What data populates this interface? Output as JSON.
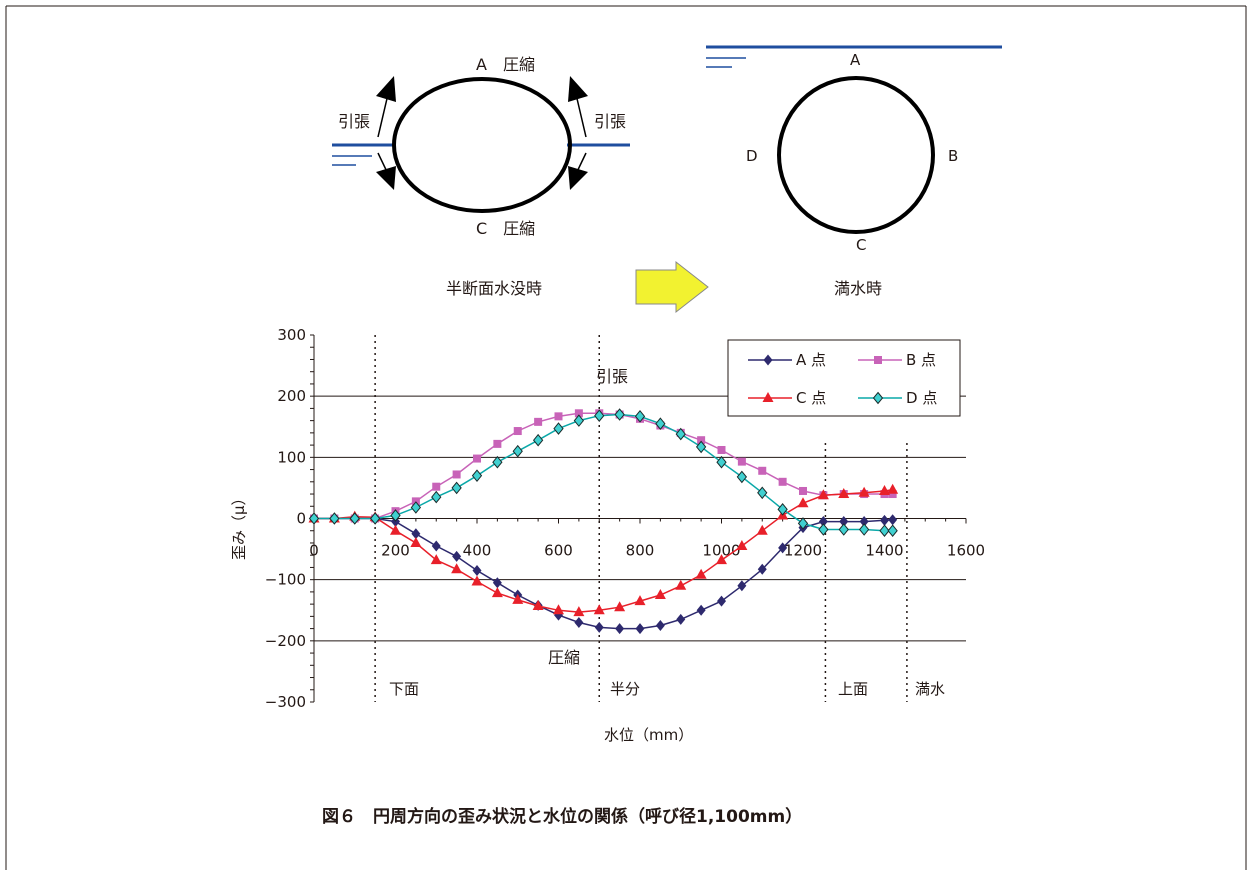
{
  "diagram_left": {
    "label_top": "A　圧縮",
    "label_bottom": "C　圧縮",
    "label_left": "引張",
    "label_right": "引張",
    "caption": "半断面水没時"
  },
  "diagram_right": {
    "label_a": "A",
    "label_b": "B",
    "label_c": "C",
    "label_d": "D",
    "caption": "満水時"
  },
  "colors": {
    "water": "#1f4e9f",
    "arrow_fill": "#f2f230",
    "arrow_stroke": "#888888",
    "series_a": "#2e2a6e",
    "series_b": "#c863b8",
    "series_c": "#e8202a",
    "series_d": "#0aa8a8",
    "series_d_fill": "#40d0d0"
  },
  "chart_data": {
    "type": "line",
    "xlabel": "水位（mm）",
    "ylabel": "歪み（μ）",
    "xlim": [
      0,
      1600
    ],
    "ylim": [
      -300,
      300
    ],
    "xticks": [
      "0",
      "200",
      "400",
      "600",
      "800",
      "1000",
      "1200",
      "1400",
      "1600"
    ],
    "yticks": [
      "300",
      "200",
      "100",
      "0",
      "−100",
      "−200",
      "−300"
    ],
    "grid": "horizontal",
    "legend_position": "top-right",
    "annotations": {
      "tension": "引張",
      "compression": "圧縮",
      "bottom_surface": "下面",
      "half": "半分",
      "top_surface": "上面",
      "full": "満水"
    },
    "reference_lines_x": [
      150,
      700,
      1255,
      1455
    ],
    "series": [
      {
        "name": "A 点",
        "marker": "diamond",
        "points": [
          [
            0,
            0
          ],
          [
            50,
            0
          ],
          [
            100,
            0
          ],
          [
            150,
            0
          ],
          [
            200,
            -5
          ],
          [
            250,
            -25
          ],
          [
            300,
            -45
          ],
          [
            350,
            -62
          ],
          [
            400,
            -85
          ],
          [
            450,
            -105
          ],
          [
            500,
            -125
          ],
          [
            550,
            -142
          ],
          [
            600,
            -158
          ],
          [
            650,
            -170
          ],
          [
            700,
            -178
          ],
          [
            750,
            -180
          ],
          [
            800,
            -180
          ],
          [
            850,
            -175
          ],
          [
            900,
            -165
          ],
          [
            950,
            -150
          ],
          [
            1000,
            -135
          ],
          [
            1050,
            -110
          ],
          [
            1100,
            -83
          ],
          [
            1150,
            -48
          ],
          [
            1200,
            -15
          ],
          [
            1250,
            -5
          ],
          [
            1300,
            -5
          ],
          [
            1350,
            -5
          ],
          [
            1400,
            -3
          ],
          [
            1420,
            -2
          ]
        ]
      },
      {
        "name": "B 点",
        "marker": "square",
        "points": [
          [
            0,
            0
          ],
          [
            50,
            0
          ],
          [
            100,
            0
          ],
          [
            150,
            0
          ],
          [
            200,
            12
          ],
          [
            250,
            28
          ],
          [
            300,
            52
          ],
          [
            350,
            72
          ],
          [
            400,
            98
          ],
          [
            450,
            122
          ],
          [
            500,
            143
          ],
          [
            550,
            158
          ],
          [
            600,
            167
          ],
          [
            650,
            172
          ],
          [
            700,
            172
          ],
          [
            750,
            170
          ],
          [
            800,
            163
          ],
          [
            850,
            152
          ],
          [
            900,
            140
          ],
          [
            950,
            128
          ],
          [
            1000,
            112
          ],
          [
            1050,
            93
          ],
          [
            1100,
            78
          ],
          [
            1150,
            60
          ],
          [
            1200,
            45
          ],
          [
            1250,
            38
          ],
          [
            1300,
            40
          ],
          [
            1350,
            40
          ],
          [
            1400,
            40
          ],
          [
            1420,
            40
          ]
        ]
      },
      {
        "name": "C 点",
        "marker": "triangle",
        "points": [
          [
            0,
            0
          ],
          [
            50,
            0
          ],
          [
            100,
            3
          ],
          [
            150,
            2
          ],
          [
            200,
            -20
          ],
          [
            250,
            -40
          ],
          [
            300,
            -68
          ],
          [
            350,
            -83
          ],
          [
            400,
            -103
          ],
          [
            450,
            -122
          ],
          [
            500,
            -133
          ],
          [
            550,
            -143
          ],
          [
            600,
            -150
          ],
          [
            650,
            -153
          ],
          [
            700,
            -150
          ],
          [
            750,
            -145
          ],
          [
            800,
            -135
          ],
          [
            850,
            -125
          ],
          [
            900,
            -110
          ],
          [
            950,
            -92
          ],
          [
            1000,
            -68
          ],
          [
            1050,
            -45
          ],
          [
            1100,
            -20
          ],
          [
            1150,
            5
          ],
          [
            1200,
            25
          ],
          [
            1250,
            38
          ],
          [
            1300,
            40
          ],
          [
            1350,
            42
          ],
          [
            1400,
            45
          ],
          [
            1420,
            47
          ]
        ]
      },
      {
        "name": "D 点",
        "marker": "diamond",
        "points": [
          [
            0,
            0
          ],
          [
            50,
            0
          ],
          [
            100,
            0
          ],
          [
            150,
            0
          ],
          [
            200,
            5
          ],
          [
            250,
            18
          ],
          [
            300,
            35
          ],
          [
            350,
            50
          ],
          [
            400,
            70
          ],
          [
            450,
            92
          ],
          [
            500,
            110
          ],
          [
            550,
            128
          ],
          [
            600,
            147
          ],
          [
            650,
            160
          ],
          [
            700,
            168
          ],
          [
            750,
            170
          ],
          [
            800,
            167
          ],
          [
            850,
            155
          ],
          [
            900,
            138
          ],
          [
            950,
            117
          ],
          [
            1000,
            92
          ],
          [
            1050,
            68
          ],
          [
            1100,
            42
          ],
          [
            1150,
            15
          ],
          [
            1200,
            -8
          ],
          [
            1250,
            -18
          ],
          [
            1300,
            -18
          ],
          [
            1350,
            -18
          ],
          [
            1400,
            -20
          ],
          [
            1420,
            -20
          ]
        ]
      }
    ]
  },
  "figure_caption": "図６　円周方向の歪み状況と水位の関係（呼び径1,100mm）"
}
